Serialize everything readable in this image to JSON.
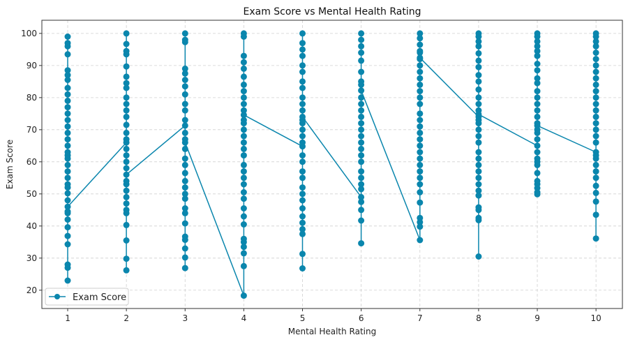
{
  "chart_data": {
    "type": "line",
    "title": "Exam Score vs Mental Health Rating",
    "xlabel": "Mental Health Rating",
    "ylabel": "Exam Score",
    "xlim": [
      0.56,
      10.45
    ],
    "ylim": [
      14.3,
      104.1
    ],
    "xticks": [
      1,
      2,
      3,
      4,
      5,
      6,
      7,
      8,
      9,
      10
    ],
    "yticks": [
      20,
      30,
      40,
      50,
      60,
      70,
      80,
      90,
      100
    ],
    "grid": true,
    "legend": {
      "entries": [
        "Exam Score"
      ],
      "placement": "lower-left"
    },
    "series": [
      {
        "name": "Exam Score",
        "color": "#0a86ad",
        "marker": "circle",
        "columns": [
          {
            "x": 1,
            "y": [
              62,
              99,
              97,
              96,
              93.5,
              88.5,
              87,
              85.5,
              83,
              81,
              79,
              77,
              75,
              73,
              71,
              69,
              67,
              65,
              63,
              61,
              59,
              57,
              55,
              53,
              52,
              50.2,
              48,
              44,
              42,
              39.6,
              36.9,
              34.3,
              28,
              27,
              23,
              44.5,
              46
            ]
          },
          {
            "x": 2,
            "y": [
              66,
              100,
              96.7,
              94.5,
              93.5,
              89.7,
              86.5,
              84.5,
              83,
              80,
              78,
              76,
              74,
              71.5,
              69,
              67,
              64,
              62,
              60,
              58,
              53,
              51,
              49,
              47,
              45,
              44,
              40.3,
              35.5,
              29.8,
              26.2,
              54,
              56
            ]
          },
          {
            "x": 3,
            "y": [
              71.3,
              100,
              98,
              97.3,
              89,
              87.5,
              85.5,
              83.5,
              81,
              78,
              76,
              73,
              69,
              64,
              61,
              59,
              56.5,
              54,
              52,
              50,
              48.5,
              45.5,
              44,
              40.8,
              36.7,
              35.7,
              33,
              30.2,
              26.9,
              67,
              66
            ]
          },
          {
            "x": 4,
            "y": [
              18.3,
              100,
              99,
              93,
              91,
              89,
              86.5,
              84,
              82,
              80,
              78,
              76,
              72,
              70,
              68,
              66,
              64,
              62,
              59,
              57,
              55,
              53,
              50.5,
              48.5,
              45.5,
              43,
              40.5,
              36,
              35,
              33.5,
              31.5,
              27.5,
              73,
              74.6
            ]
          },
          {
            "x": 5,
            "y": [
              64.8,
              100,
              97,
              95,
              93,
              90,
              88,
              85,
              83,
              80,
              78,
              76,
              72,
              70,
              68,
              66,
              62,
              60,
              57,
              55,
              52,
              50,
              48,
              45.5,
              43,
              41,
              39,
              37.5,
              31.3,
              26.8,
              73,
              74
            ]
          },
          {
            "x": 6,
            "y": [
              49,
              100,
              98,
              96,
              94,
              91.5,
              88,
              85,
              80,
              78,
              76,
              74,
              72,
              70,
              68,
              66,
              64,
              62,
              60,
              57,
              55,
              53,
              51.5,
              47.5,
              45,
              41.7,
              34.6,
              84,
              82.2
            ]
          },
          {
            "x": 7,
            "y": [
              35.6,
              100,
              98.5,
              96.5,
              94.5,
              92,
              90,
              88,
              86,
              84,
              82,
              80,
              78,
              75,
              73,
              71,
              69,
              67,
              65,
              63,
              61,
              59,
              57,
              55,
              53,
              50.5,
              47.3,
              42.5,
              41.2,
              39.8,
              94,
              92.4
            ]
          },
          {
            "x": 8,
            "y": [
              74,
              100,
              99,
              97.5,
              96,
              93.8,
              91.5,
              89.5,
              87,
              85,
              82.5,
              80,
              78,
              76,
              72,
              70,
              68,
              66,
              63,
              61,
              59,
              57,
              55,
              53,
              51,
              49.5,
              45.8,
              45,
              42.5,
              41.8,
              30.5,
              73,
              74.8
            ]
          },
          {
            "x": 9,
            "y": [
              65,
              100,
              99,
              97.5,
              96,
              94.5,
              93,
              90.5,
              88.5,
              86,
              84.5,
              82,
              80,
              78,
              76,
              74,
              72,
              69,
              67,
              63,
              61,
              60,
              59,
              56.5,
              54,
              53,
              51.8,
              50.5,
              49.9,
              70,
              71.3
            ]
          },
          {
            "x": 10,
            "y": [
              63,
              100,
              99,
              97.5,
              96,
              94,
              92,
              90,
              88,
              86,
              84,
              82,
              80,
              78,
              76,
              74,
              72,
              70,
              68,
              66,
              61,
              59,
              57,
              55,
              52.5,
              50.3,
              47.6,
              43.5,
              36.1,
              62
            ]
          }
        ]
      }
    ]
  }
}
